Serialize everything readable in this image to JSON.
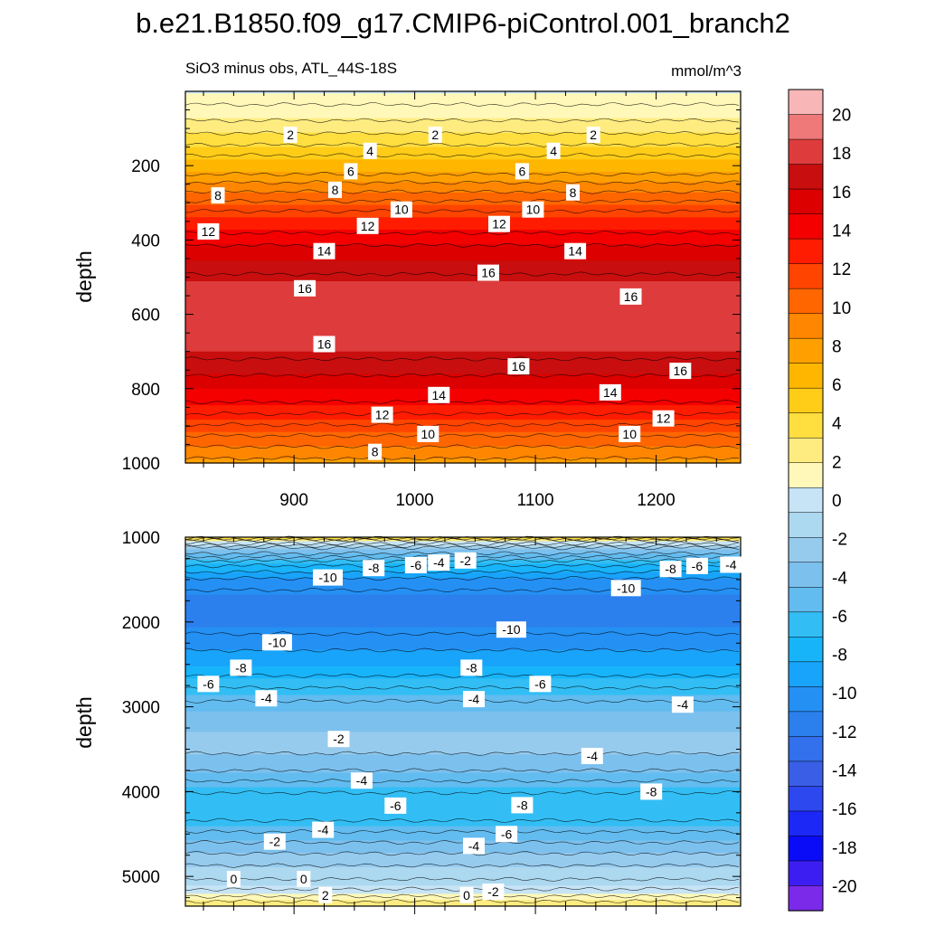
{
  "figure": {
    "title": "b.e21.B1850.f09_g17.CMIP6-piControl.001_branch2",
    "subtitle_left": "SiO3 minus obs, ATL_44S-18S",
    "subtitle_right": "mmol/m^3"
  },
  "chart_data": [
    {
      "type": "heatmap",
      "panel": "upper",
      "description": "Time-depth contour plot of SiO3 bias (model minus obs), upper ocean",
      "xlim": [
        810,
        1270
      ],
      "ylim": [
        0,
        1000
      ],
      "y_inverted": true,
      "ylabel": "depth",
      "xticks": [
        900,
        1000,
        1100,
        1200
      ],
      "xtick_labels": [
        "900",
        "1000",
        "1100",
        "1200"
      ],
      "yticks": [
        200,
        400,
        600,
        800,
        1000
      ],
      "ytick_labels": [
        "200",
        "400",
        "600",
        "800",
        "1000"
      ],
      "profile_depth": [
        0,
        50,
        100,
        150,
        200,
        250,
        300,
        350,
        400,
        450,
        500,
        550,
        600,
        650,
        700,
        750,
        800,
        850,
        900,
        950,
        1000
      ],
      "profile_value": [
        0.5,
        1.2,
        2.6,
        4.2,
        6.0,
        8.2,
        10.2,
        12.0,
        13.6,
        15.0,
        16.2,
        17.0,
        17.2,
        17.0,
        16.4,
        15.4,
        14.0,
        12.6,
        10.9,
        9.2,
        7.6
      ],
      "contour_labels": [
        {
          "t": 897,
          "d": 117,
          "v": "2"
        },
        {
          "t": 1017,
          "d": 117,
          "v": "2"
        },
        {
          "t": 1148,
          "d": 117,
          "v": "2"
        },
        {
          "t": 963,
          "d": 160,
          "v": "4"
        },
        {
          "t": 1115,
          "d": 160,
          "v": "4"
        },
        {
          "t": 947,
          "d": 215,
          "v": "6"
        },
        {
          "t": 1089,
          "d": 215,
          "v": "6"
        },
        {
          "t": 837,
          "d": 280,
          "v": "8"
        },
        {
          "t": 934,
          "d": 265,
          "v": "8"
        },
        {
          "t": 1131,
          "d": 272,
          "v": "8"
        },
        {
          "t": 989,
          "d": 318,
          "v": "10"
        },
        {
          "t": 1098,
          "d": 318,
          "v": "10"
        },
        {
          "t": 829,
          "d": 377,
          "v": "12"
        },
        {
          "t": 961,
          "d": 362,
          "v": "12"
        },
        {
          "t": 1070,
          "d": 357,
          "v": "12"
        },
        {
          "t": 925,
          "d": 430,
          "v": "14"
        },
        {
          "t": 1133,
          "d": 430,
          "v": "14"
        },
        {
          "t": 1061,
          "d": 488,
          "v": "16"
        },
        {
          "t": 909,
          "d": 530,
          "v": "16"
        },
        {
          "t": 1179,
          "d": 552,
          "v": "16"
        },
        {
          "t": 925,
          "d": 680,
          "v": "16"
        },
        {
          "t": 1086,
          "d": 740,
          "v": "16"
        },
        {
          "t": 1220,
          "d": 752,
          "v": "16"
        },
        {
          "t": 1020,
          "d": 817,
          "v": "14"
        },
        {
          "t": 1162,
          "d": 810,
          "v": "14"
        },
        {
          "t": 973,
          "d": 870,
          "v": "12"
        },
        {
          "t": 1206,
          "d": 880,
          "v": "12"
        },
        {
          "t": 1011,
          "d": 922,
          "v": "10"
        },
        {
          "t": 1178,
          "d": 922,
          "v": "10"
        },
        {
          "t": 967,
          "d": 970,
          "v": "8"
        }
      ]
    },
    {
      "type": "heatmap",
      "panel": "lower",
      "description": "Time-depth contour plot of SiO3 bias (model minus obs), deep ocean",
      "xlim": [
        810,
        1270
      ],
      "ylim": [
        1000,
        5350
      ],
      "y_inverted": true,
      "ylabel": "depth",
      "yticks": [
        1000,
        2000,
        3000,
        4000,
        5000
      ],
      "ytick_labels": [
        "1000",
        "2000",
        "3000",
        "4000",
        "5000"
      ],
      "profile_depth": [
        1000,
        1050,
        1150,
        1300,
        1500,
        1700,
        1900,
        2100,
        2300,
        2500,
        2700,
        2900,
        3100,
        3300,
        3500,
        3700,
        3900,
        4100,
        4300,
        4500,
        4700,
        4900,
        5100,
        5250,
        5350
      ],
      "profile_value": [
        5.0,
        1.0,
        -3.0,
        -6.5,
        -9.2,
        -10.5,
        -10.8,
        -10.2,
        -9.2,
        -8.0,
        -6.5,
        -5.2,
        -4.0,
        -3.0,
        -2.8,
        -3.6,
        -5.2,
        -6.6,
        -6.3,
        -4.8,
        -3.2,
        -1.8,
        -0.6,
        1.2,
        3.0
      ],
      "contour_labels": [
        {
          "t": 1042,
          "d": 1275,
          "v": "-2"
        },
        {
          "t": 1020,
          "d": 1300,
          "v": "-4"
        },
        {
          "t": 1001,
          "d": 1330,
          "v": "-6"
        },
        {
          "t": 966,
          "d": 1365,
          "v": "-8"
        },
        {
          "t": 928,
          "d": 1475,
          "v": "-10"
        },
        {
          "t": 1262,
          "d": 1325,
          "v": "-4"
        },
        {
          "t": 1234,
          "d": 1340,
          "v": "-6"
        },
        {
          "t": 1212,
          "d": 1375,
          "v": "-8"
        },
        {
          "t": 1175,
          "d": 1600,
          "v": "-10"
        },
        {
          "t": 1080,
          "d": 2090,
          "v": "-10"
        },
        {
          "t": 886,
          "d": 2240,
          "v": "-10"
        },
        {
          "t": 856,
          "d": 2540,
          "v": "-8"
        },
        {
          "t": 1047,
          "d": 2540,
          "v": "-8"
        },
        {
          "t": 829,
          "d": 2730,
          "v": "-6"
        },
        {
          "t": 1104,
          "d": 2730,
          "v": "-6"
        },
        {
          "t": 877,
          "d": 2900,
          "v": "-4"
        },
        {
          "t": 1049,
          "d": 2910,
          "v": "-4"
        },
        {
          "t": 1222,
          "d": 2975,
          "v": "-4"
        },
        {
          "t": 937,
          "d": 3380,
          "v": "-2"
        },
        {
          "t": 1147,
          "d": 3580,
          "v": "-4"
        },
        {
          "t": 956,
          "d": 3870,
          "v": "-4"
        },
        {
          "t": 1196,
          "d": 4000,
          "v": "-8"
        },
        {
          "t": 984,
          "d": 4165,
          "v": "-6"
        },
        {
          "t": 1089,
          "d": 4160,
          "v": "-8"
        },
        {
          "t": 924,
          "d": 4450,
          "v": "-4"
        },
        {
          "t": 1076,
          "d": 4500,
          "v": "-6"
        },
        {
          "t": 1049,
          "d": 4640,
          "v": "-4"
        },
        {
          "t": 884,
          "d": 4590,
          "v": "-2"
        },
        {
          "t": 850,
          "d": 5030,
          "v": "0"
        },
        {
          "t": 908,
          "d": 5030,
          "v": "0"
        },
        {
          "t": 926,
          "d": 5220,
          "v": "2"
        },
        {
          "t": 1043,
          "d": 5220,
          "v": "0"
        },
        {
          "t": 1065,
          "d": 5180,
          "v": "-2"
        }
      ]
    }
  ],
  "colorbar": {
    "levels": [
      20,
      18,
      16,
      14,
      12,
      10,
      8,
      6,
      4,
      2,
      0,
      -2,
      -4,
      -6,
      -8,
      -10,
      -12,
      -14,
      -16,
      -18,
      -20
    ],
    "labels": [
      "20",
      "18",
      "16",
      "14",
      "12",
      "10",
      "8",
      "6",
      "4",
      "2",
      "0",
      "-2",
      "-4",
      "-6",
      "-8",
      "-10",
      "-12",
      "-14",
      "-16",
      "-18",
      "-20"
    ],
    "colors": [
      "#f8b6b6",
      "#ef7878",
      "#de3c3c",
      "#c80e0e",
      "#dc0000",
      "#f40000",
      "#ff1c00",
      "#ff4400",
      "#ff6600",
      "#ff8600",
      "#ffa000",
      "#ffb600",
      "#ffcc18",
      "#ffde40",
      "#ffec80",
      "#fff8b8",
      "#c6e4f6",
      "#acd8f0",
      "#96cbee",
      "#7cc0ee",
      "#62bcf0",
      "#32bef4",
      "#18b4fa",
      "#18a4fa",
      "#2490f4",
      "#2c80ee",
      "#3270ec",
      "#3a5ee6",
      "#2c48ee",
      "#1c28f6",
      "#0a0cf8",
      "#3c1ef2",
      "#7a2ae8"
    ]
  }
}
